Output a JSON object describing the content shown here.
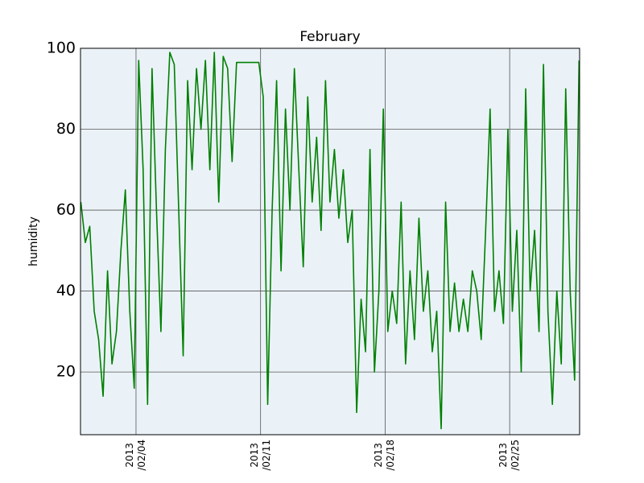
{
  "chart_data": {
    "type": "line",
    "title": "February",
    "ylabel": "humidity",
    "x": [
      0.9,
      1.15,
      1.4,
      1.65,
      1.9,
      2.15,
      2.4,
      2.65,
      2.9,
      3.15,
      3.4,
      3.65,
      3.9,
      4.15,
      4.4,
      4.65,
      4.9,
      5.15,
      5.4,
      5.65,
      5.9,
      6.15,
      6.4,
      6.65,
      6.9,
      7.15,
      7.4,
      7.65,
      7.9,
      8.15,
      8.4,
      8.65,
      8.9,
      9.15,
      9.4,
      9.65,
      9.9,
      10.15,
      10.4,
      10.65,
      10.9,
      11.15,
      11.4,
      11.65,
      11.9,
      12.15,
      12.4,
      12.65,
      12.9,
      13.15,
      13.4,
      13.65,
      13.9,
      14.15,
      14.4,
      14.65,
      14.9,
      15.15,
      15.4,
      15.65,
      15.9,
      16.15,
      16.4,
      16.65,
      16.9,
      17.15,
      17.4,
      17.65,
      17.9,
      18.15,
      18.4,
      18.65,
      18.9,
      19.15,
      19.4,
      19.65,
      19.9,
      20.15,
      20.4,
      20.65,
      20.9,
      21.15,
      21.4,
      21.65,
      21.9,
      22.15,
      22.4,
      22.65,
      22.9,
      23.15,
      23.4,
      23.65,
      23.9,
      24.15,
      24.4,
      24.65,
      24.9,
      25.15,
      25.4,
      25.65,
      25.9,
      26.15,
      26.4,
      26.65,
      26.9,
      27.15,
      27.4,
      27.65,
      27.9,
      28.15,
      28.4,
      28.65,
      28.9
    ],
    "values": [
      62,
      52,
      56,
      35,
      28,
      14,
      45,
      22,
      30,
      50,
      65,
      35,
      16,
      97,
      70,
      12,
      95,
      60,
      30,
      75,
      99,
      96,
      60,
      24,
      92,
      70,
      95,
      80,
      97,
      70,
      99,
      62,
      98,
      95,
      72,
      96.5,
      96.5,
      96.5,
      96.5,
      96.5,
      96.5,
      88,
      12,
      60,
      92,
      45,
      85,
      60,
      95,
      70,
      46,
      88,
      62,
      78,
      55,
      92,
      62,
      75,
      58,
      70,
      52,
      60,
      10,
      38,
      25,
      75,
      20,
      40,
      85,
      30,
      40,
      32,
      62,
      22,
      45,
      28,
      58,
      35,
      45,
      25,
      35,
      6,
      62,
      30,
      42,
      30,
      38,
      30,
      45,
      40,
      28,
      55,
      85,
      35,
      45,
      32,
      80,
      35,
      55,
      20,
      90,
      40,
      55,
      30,
      96,
      35,
      12,
      40,
      22,
      90,
      40,
      18,
      97
    ],
    "color": "#008000",
    "xlim": [
      0.88,
      28.93
    ],
    "xticks": [
      {
        "value": 4,
        "label": "2013\n/02/04"
      },
      {
        "value": 11,
        "label": "2013\n/02/11"
      },
      {
        "value": 18,
        "label": "2013\n/02/18"
      },
      {
        "value": 25,
        "label": "2013\n/02/25"
      }
    ],
    "ylim": [
      4.5,
      100
    ],
    "yticks": [
      20,
      40,
      60,
      80,
      100
    ],
    "grid": true
  }
}
